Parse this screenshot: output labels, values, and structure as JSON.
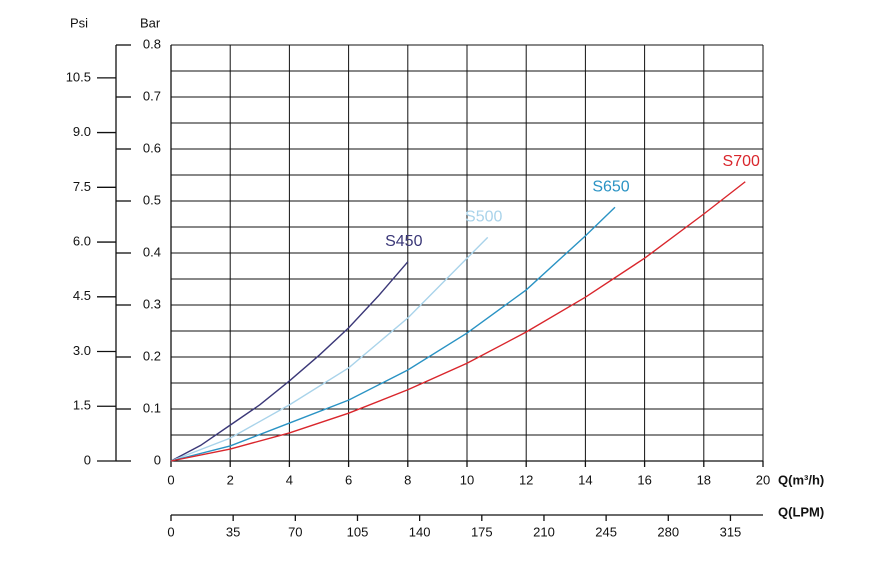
{
  "chart_data": {
    "type": "line",
    "y_left_label": "Psi",
    "y_label": "Bar",
    "x_label": "Q(m³/h)",
    "x2_label": "Q(LPM)",
    "xlim": [
      0,
      20
    ],
    "xticks": [
      0,
      2,
      4,
      6,
      8,
      10,
      12,
      14,
      16,
      18,
      20
    ],
    "x2lim": [
      0,
      333.33
    ],
    "x2ticks": [
      0,
      35,
      70,
      105,
      140,
      175,
      210,
      245,
      280,
      315
    ],
    "ylim": [
      0,
      0.8
    ],
    "yticks": [
      0,
      0.1,
      0.2,
      0.3,
      0.4,
      0.5,
      0.6,
      0.7,
      0.8
    ],
    "y_minor_ticks": [
      0.05,
      0.15,
      0.25,
      0.35,
      0.45,
      0.55,
      0.65,
      0.75
    ],
    "psilim": [
      0,
      11.4
    ],
    "psiticks": [
      0,
      1.5,
      {
        "value": 3,
        "label": "3.0"
      },
      4.5,
      {
        "value": 6,
        "label": "6.0"
      },
      7.5,
      {
        "value": 9,
        "label": "9.0"
      },
      10.5
    ],
    "grid": true,
    "series": [
      {
        "name": "S450",
        "color": "#3b3878",
        "x": [
          0,
          1,
          2,
          3,
          4,
          5,
          6,
          7,
          8
        ],
        "values": [
          0,
          0.03,
          0.069,
          0.108,
          0.154,
          0.203,
          0.256,
          0.317,
          0.383
        ]
      },
      {
        "name": "S500",
        "color": "#a9d3ea",
        "x": [
          0,
          2,
          4,
          6,
          8,
          10,
          10.7
        ],
        "values": [
          0,
          0.044,
          0.108,
          0.179,
          0.275,
          0.39,
          0.43
        ]
      },
      {
        "name": "S650",
        "color": "#2a93c4",
        "x": [
          0,
          2,
          4,
          6,
          8,
          10,
          12,
          14,
          15
        ],
        "values": [
          0,
          0.029,
          0.073,
          0.117,
          0.175,
          0.246,
          0.329,
          0.433,
          0.488
        ]
      },
      {
        "name": "S700",
        "color": "#d9262c",
        "x": [
          0,
          2,
          4,
          6,
          8,
          10,
          12,
          14,
          16,
          18,
          19.4
        ],
        "values": [
          0,
          0.023,
          0.054,
          0.092,
          0.137,
          0.188,
          0.248,
          0.315,
          0.39,
          0.475,
          0.537
        ]
      }
    ]
  }
}
